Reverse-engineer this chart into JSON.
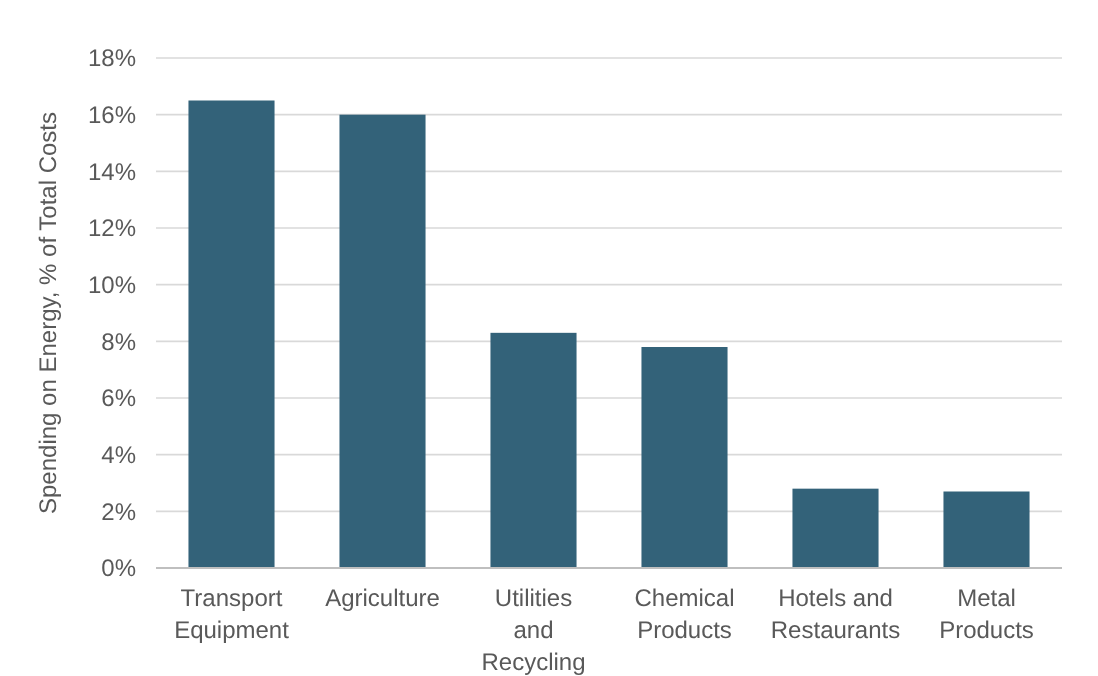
{
  "chart_data": {
    "type": "bar",
    "ylabel": "Spending on Energy, % of Total Costs",
    "categories": [
      "Transport Equipment",
      "Agriculture",
      "Utilities and Recycling",
      "Chemical Products",
      "Hotels and Restaurants",
      "Metal Products"
    ],
    "values": [
      16.5,
      16.0,
      8.3,
      7.8,
      2.8,
      2.7
    ],
    "color": "#336279",
    "ylim": [
      0,
      18
    ],
    "yticks": [
      {
        "value": 0,
        "label": "0%"
      },
      {
        "value": 2,
        "label": "2%"
      },
      {
        "value": 4,
        "label": "4%"
      },
      {
        "value": 6,
        "label": "6%"
      },
      {
        "value": 8,
        "label": "8%"
      },
      {
        "value": 10,
        "label": "10%"
      },
      {
        "value": 12,
        "label": "12%"
      },
      {
        "value": 14,
        "label": "14%"
      },
      {
        "value": 16,
        "label": "16%"
      },
      {
        "value": 18,
        "label": "18%"
      }
    ],
    "grid": "y"
  }
}
